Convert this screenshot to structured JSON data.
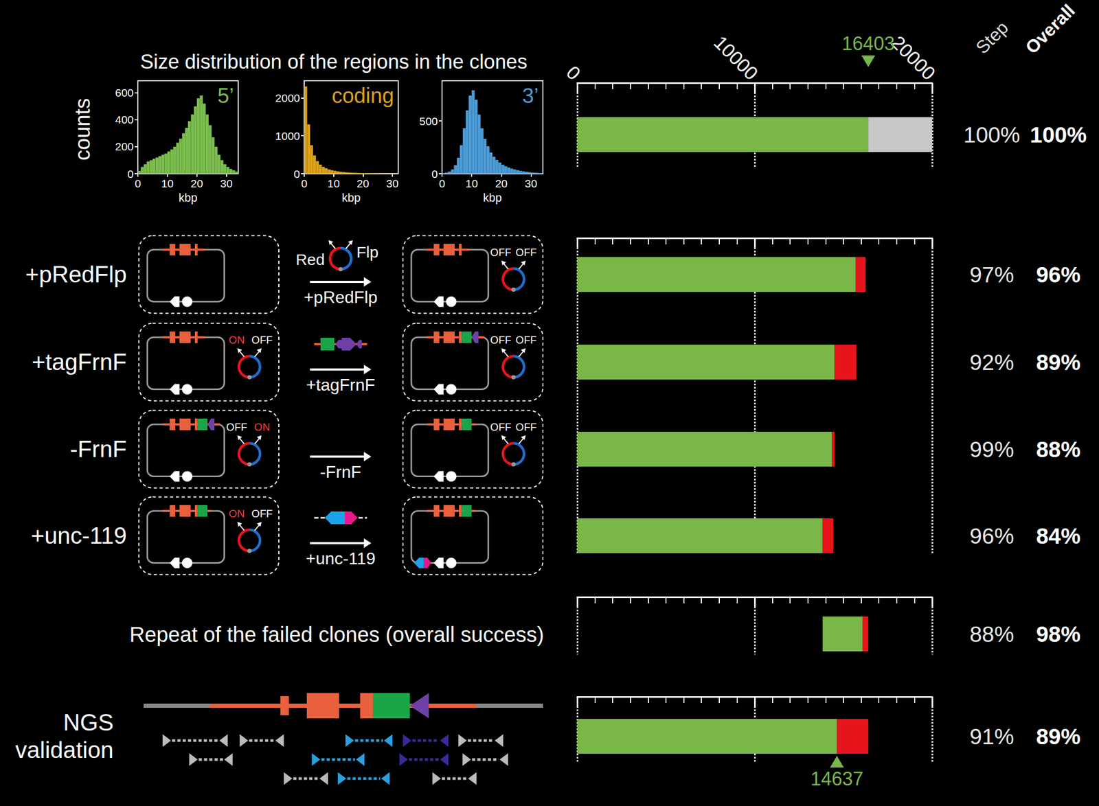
{
  "title": "Size distribution of the regions in the clones",
  "chart_data": [
    {
      "type": "histogram",
      "title": "5’",
      "y_label": "counts",
      "x_label": "kbp",
      "color": "#7bbd4e",
      "bins": [
        0,
        1,
        2,
        3,
        4,
        5,
        6,
        7,
        8,
        9,
        10,
        11,
        12,
        13,
        14,
        15,
        16,
        17,
        18,
        19,
        20,
        21,
        22,
        23,
        24,
        25,
        26,
        27,
        28,
        29,
        30,
        31,
        32,
        33,
        34
      ],
      "values": [
        20,
        50,
        70,
        90,
        100,
        110,
        120,
        130,
        140,
        150,
        165,
        180,
        200,
        230,
        260,
        300,
        340,
        390,
        440,
        500,
        560,
        580,
        520,
        440,
        360,
        270,
        200,
        140,
        100,
        70,
        50,
        35,
        25,
        15
      ],
      "xlim": [
        0,
        34
      ],
      "xticks": [
        0,
        10,
        20,
        30
      ],
      "ylim": [
        0,
        690
      ],
      "yticks": [
        0,
        200,
        400,
        600
      ]
    },
    {
      "type": "histogram",
      "title": "coding",
      "x_label": "kbp",
      "color": "#dca11c",
      "bins": [
        0,
        1,
        2,
        3,
        4,
        5,
        6,
        7,
        8,
        9,
        10,
        11,
        12,
        13,
        14,
        15,
        16,
        17,
        18,
        19,
        20,
        21,
        22,
        23,
        24,
        25,
        26,
        27,
        28,
        29,
        30,
        31,
        32
      ],
      "values": [
        2300,
        1300,
        750,
        480,
        330,
        240,
        180,
        140,
        110,
        90,
        75,
        60,
        50,
        42,
        35,
        30,
        25,
        22,
        19,
        16,
        14,
        12,
        10,
        9,
        8,
        7,
        6,
        5,
        4,
        4,
        3,
        3
      ],
      "xlim": [
        0,
        32
      ],
      "xticks": [
        0,
        10,
        20,
        30
      ],
      "ylim": [
        0,
        2450
      ],
      "yticks": [
        0,
        1000,
        2000
      ]
    },
    {
      "type": "histogram",
      "title": "3’",
      "x_label": "kbp",
      "color": "#4b9bd6",
      "bins": [
        0,
        1,
        2,
        3,
        4,
        5,
        6,
        7,
        8,
        9,
        10,
        11,
        12,
        13,
        14,
        15,
        16,
        17,
        18,
        19,
        20,
        21,
        22,
        23,
        24,
        25,
        26,
        27,
        28,
        29,
        30,
        31,
        32,
        33,
        34
      ],
      "values": [
        5,
        10,
        20,
        40,
        80,
        150,
        270,
        430,
        600,
        740,
        790,
        700,
        560,
        430,
        330,
        260,
        200,
        160,
        130,
        105,
        85,
        70,
        58,
        48,
        40,
        33,
        27,
        22,
        18,
        14,
        11,
        9,
        7,
        5
      ],
      "xlim": [
        0,
        34
      ],
      "xticks": [
        0,
        10,
        20,
        30
      ],
      "ylim": [
        0,
        880
      ],
      "yticks": [
        0,
        500
      ]
    },
    {
      "type": "bar",
      "orientation": "horizontal",
      "stacked": true,
      "grid": true,
      "categories": [
        null,
        "+pRedFlp",
        "+tagFrnF",
        "-FrnF",
        "+unc-119",
        "Repeat of the failed clones (overall success)",
        "NGS validation"
      ],
      "starts": [
        null,
        null,
        null,
        null,
        null,
        13830,
        null
      ],
      "series": [
        {
          "color": "#7ab648",
          "values": [
            16403,
            15700,
            14500,
            14350,
            13830,
            2260,
            14637
          ]
        },
        {
          "color": "#e8141c",
          "values": [
            null,
            550,
            1230,
            150,
            600,
            310,
            1766
          ]
        },
        {
          "color": "#c8c8c8",
          "values": [
            3597,
            null,
            null,
            null,
            null,
            null,
            null
          ]
        }
      ],
      "xlim": [
        0,
        20000
      ],
      "xticks": [
        0,
        10000,
        20000
      ],
      "annotations": [
        {
          "value": 16403,
          "row": 0,
          "position": "top",
          "color": "#7ab648"
        },
        {
          "value": 14637,
          "row": 6,
          "position": "bottom",
          "color": "#7ab648"
        }
      ],
      "columns": [
        {
          "title": "Step",
          "values": [
            100,
            97,
            92,
            99,
            96,
            88,
            91
          ],
          "value_labels": [
            "100%",
            "97%",
            "92%",
            "99%",
            "96%",
            "88%",
            "91%"
          ]
        },
        {
          "title": "Overall",
          "values": [
            100,
            96,
            89,
            88,
            84,
            98,
            89
          ],
          "value_labels": [
            "100%",
            "96%",
            "89%",
            "88%",
            "84%",
            "98%",
            "89%"
          ]
        }
      ]
    }
  ],
  "diagram": {
    "steps": [
      {
        "reagent": "+pRedFlp",
        "reagent_plasmid": [
          "Red",
          "Flp"
        ],
        "before": null,
        "after": [
          "OFF",
          "OFF"
        ]
      },
      {
        "reagent": "+tagFrnF",
        "reagent_plasmid": null,
        "before": [
          "ON",
          "OFF"
        ],
        "after": [
          "OFF",
          "OFF"
        ]
      },
      {
        "reagent": "-FrnF",
        "reagent_plasmid": null,
        "before": [
          "OFF",
          "ON"
        ],
        "after": [
          "OFF",
          "OFF"
        ]
      },
      {
        "reagent": "+unc-119",
        "reagent_plasmid": null,
        "before": [
          "ON",
          "OFF"
        ],
        "after": null
      }
    ]
  }
}
